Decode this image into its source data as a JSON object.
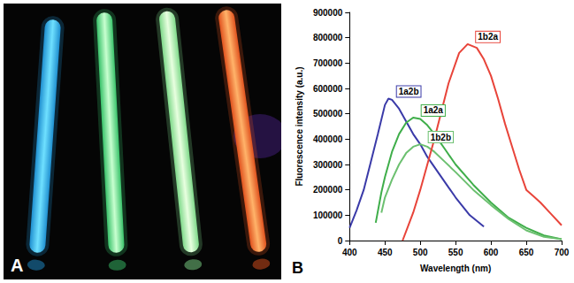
{
  "panel_labels": [
    "A",
    "B"
  ],
  "chart_data": {
    "type": "line",
    "x_label": "Wavelength (nm)",
    "y_label": "Fluorescence intensity (a.u.)",
    "xlim": [
      400,
      700
    ],
    "xticks": [
      400,
      450,
      500,
      550,
      600,
      650,
      700
    ],
    "ylim": [
      0,
      900000
    ],
    "yticks": [
      0,
      100000,
      200000,
      300000,
      400000,
      500000,
      600000,
      700000,
      800000,
      900000
    ],
    "grid": false,
    "series": [
      {
        "name": "1a2b",
        "color": "#3a3aa8",
        "x": [
          400,
          410,
          420,
          430,
          440,
          450,
          455,
          460,
          470,
          480,
          490,
          500,
          510,
          520,
          535,
          550,
          570,
          590
        ],
        "values": [
          50000,
          120000,
          200000,
          310000,
          420000,
          535000,
          560000,
          555000,
          520000,
          470000,
          420000,
          380000,
          330000,
          290000,
          230000,
          170000,
          100000,
          55000
        ]
      },
      {
        "name": "1a2a",
        "color": "#3fae4a",
        "x": [
          437,
          445,
          450,
          460,
          470,
          480,
          490,
          500,
          510,
          520,
          535,
          550,
          575,
          600,
          625,
          650,
          675,
          700
        ],
        "values": [
          70000,
          190000,
          250000,
          350000,
          420000,
          465000,
          485000,
          480000,
          455000,
          420000,
          360000,
          300000,
          220000,
          150000,
          90000,
          50000,
          20000,
          5000
        ]
      },
      {
        "name": "1b2b",
        "color": "#6cc070",
        "x": [
          445,
          450,
          460,
          470,
          480,
          490,
          500,
          510,
          520,
          535,
          550,
          575,
          600,
          625,
          650,
          675,
          700
        ],
        "values": [
          110000,
          170000,
          240000,
          300000,
          345000,
          370000,
          380000,
          370000,
          350000,
          310000,
          270000,
          200000,
          140000,
          85000,
          40000,
          15000,
          5000
        ]
      },
      {
        "name": "1b2a",
        "color": "#e8443a",
        "x": [
          475,
          490,
          500,
          510,
          520,
          530,
          540,
          555,
          567,
          580,
          590,
          600,
          610,
          620,
          630,
          640,
          650,
          660,
          670,
          685,
          700
        ],
        "values": [
          0,
          110000,
          200000,
          300000,
          400000,
          510000,
          620000,
          740000,
          775000,
          760000,
          715000,
          650000,
          560000,
          460000,
          370000,
          280000,
          200000,
          175000,
          150000,
          105000,
          60000
        ]
      }
    ]
  }
}
